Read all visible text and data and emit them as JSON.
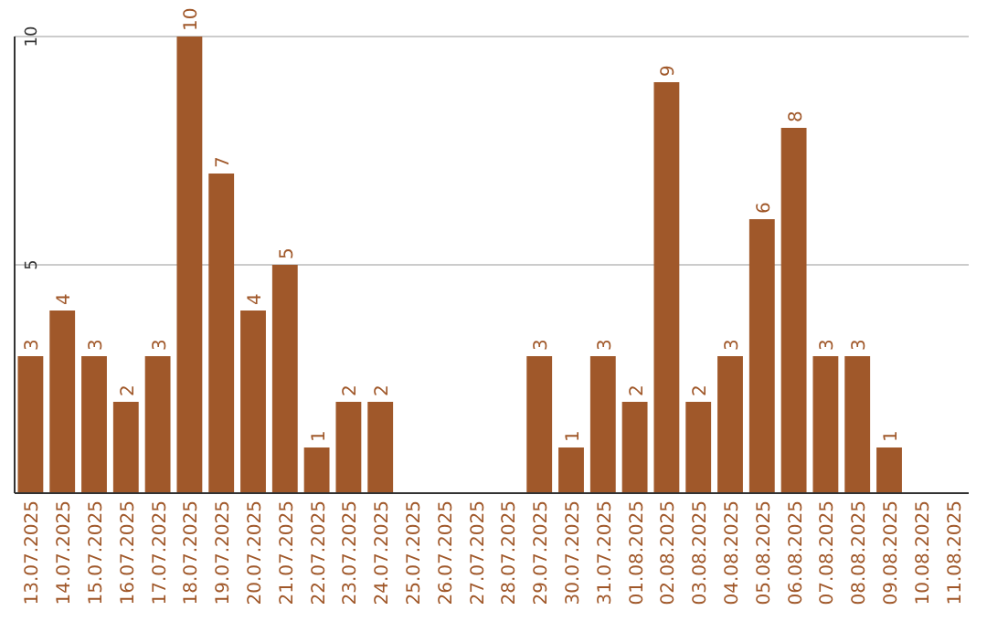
{
  "chart_data": {
    "type": "bar",
    "categories": [
      "13.07.2025",
      "14.07.2025",
      "15.07.2025",
      "16.07.2025",
      "17.07.2025",
      "18.07.2025",
      "19.07.2025",
      "20.07.2025",
      "21.07.2025",
      "22.07.2025",
      "23.07.2025",
      "24.07.2025",
      "25.07.2025",
      "26.07.2025",
      "27.07.2025",
      "28.07.2025",
      "29.07.2025",
      "30.07.2025",
      "31.07.2025",
      "01.08.2025",
      "02.08.2025",
      "03.08.2025",
      "04.08.2025",
      "05.08.2025",
      "06.08.2025",
      "07.08.2025",
      "08.08.2025",
      "09.08.2025",
      "10.08.2025",
      "11.08.2025"
    ],
    "values": [
      3,
      4,
      3,
      2,
      3,
      10,
      7,
      4,
      5,
      1,
      2,
      2,
      null,
      null,
      null,
      null,
      3,
      1,
      3,
      2,
      9,
      2,
      3,
      6,
      8,
      3,
      3,
      1,
      null,
      null
    ],
    "color": "#a0582a",
    "ylim": [
      0,
      10
    ],
    "yticks": [
      {
        "value": 0,
        "label": null
      },
      5,
      10
    ],
    "grid": "y",
    "data_labels": true
  }
}
